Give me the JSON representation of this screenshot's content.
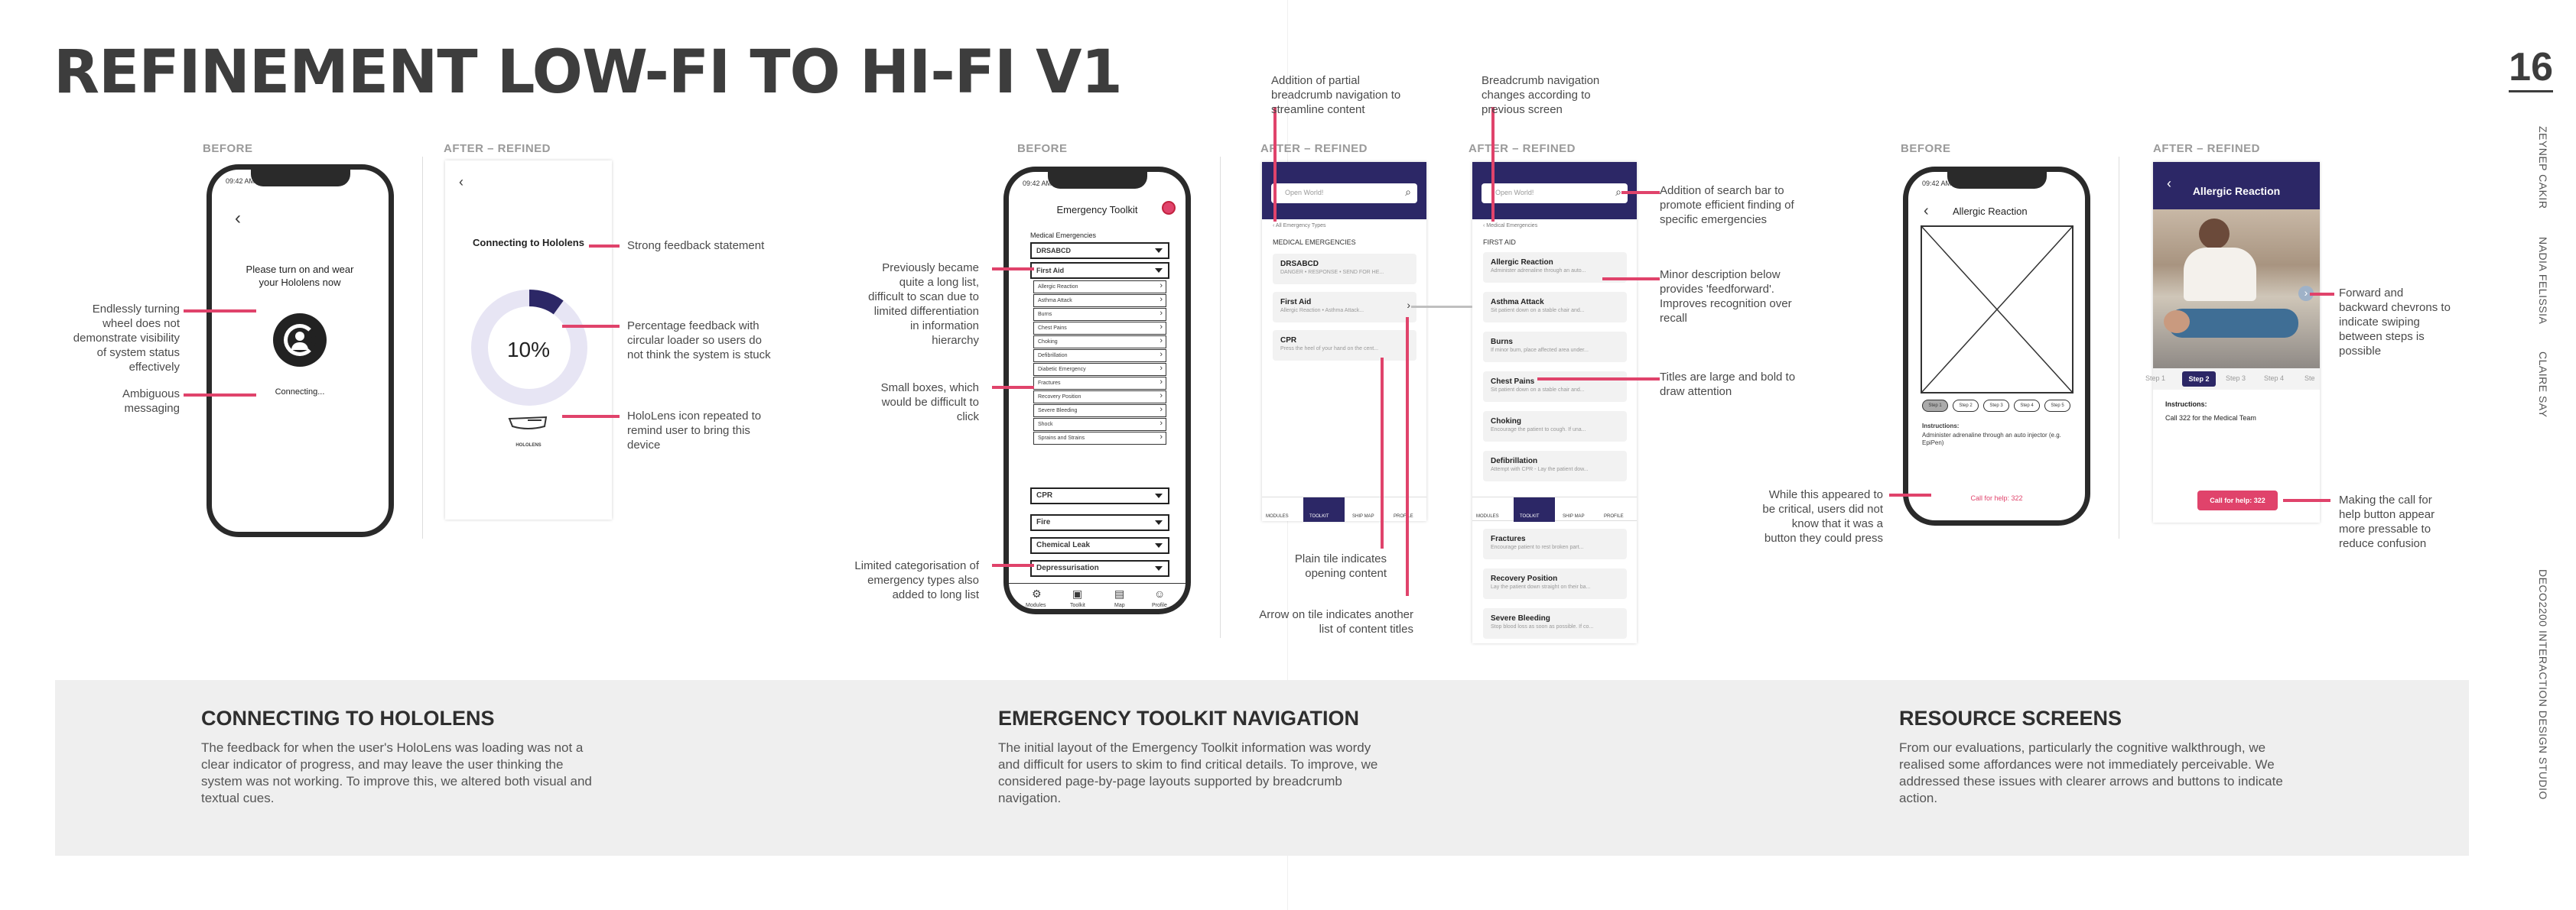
{
  "page": {
    "title": "REFINEMENT LOW-FI TO HI-FI V1",
    "number": "16",
    "colors": {
      "accent": "#e0436b",
      "navy": "#2c2766",
      "panel": "#efefef"
    }
  },
  "side": {
    "names": [
      "ZEYNEP CAKIR",
      "NADIA FELISSIA",
      "CLAIRE SAY"
    ],
    "course": "DECO2200 INTERACTION DESIGN STUDIO"
  },
  "labels": {
    "before": "BEFORE",
    "after": "AFTER – REFINED"
  },
  "hololens": {
    "before": {
      "time": "09:42 AM",
      "msg": "Please turn on and wear your Hololens now",
      "status": "Connecting..."
    },
    "after": {
      "heading": "Connecting to Hololens",
      "percent": "10%",
      "progress": 0.1,
      "brand": "HOLOLENS"
    },
    "notes": {
      "n1": "Endlessly turning wheel does not demonstrate visibility of system status effectively",
      "n2": "Ambiguous messaging",
      "n3": "Strong feedback statement",
      "n4": "Percentage feedback with circular loader so users do not think the system is stuck",
      "n5": "HoloLens icon repeated to remind user to bring this device"
    }
  },
  "toolkit": {
    "before": {
      "time": "09:42 AM",
      "title": "Emergency Toolkit",
      "section": "Medical Emergencies",
      "items": [
        "DRSABCD",
        "First Aid",
        "Allergic Reaction",
        "Asthma Attack",
        "Burns",
        "Chest Pains",
        "Choking",
        "Defibrillation",
        "Diabetic Emergency",
        "Fractures",
        "Recovery Position",
        "Severe Bleeding",
        "Shock",
        "Sprains and Strains",
        "CPR",
        "Fire",
        "Chemical Leak",
        "Depressurisation"
      ],
      "nav": [
        "Modules",
        "Toolkit",
        "Map",
        "Profile"
      ]
    },
    "after1": {
      "search": "Open World!",
      "crumb": "‹  All Emergency Types",
      "section": "MEDICAL EMERGENCIES",
      "tiles": [
        {
          "t": "DRSABCD",
          "s": "DANGER • RESPONSE • SEND FOR HE..."
        },
        {
          "t": "First Aid",
          "s": "Allergic Reaction • Asthma Attack..."
        },
        {
          "t": "CPR",
          "s": "Press the heel of your hand on the cent..."
        }
      ],
      "nav": [
        "MODULES",
        "TOOLKIT",
        "SHIP MAP",
        "PROFILE"
      ]
    },
    "after2": {
      "search": "Open World!",
      "crumb": "‹  Medical Emergencies",
      "section": "FIRST AID",
      "tiles": [
        {
          "t": "Allergic Reaction",
          "s": "Administer adrenaline through an auto..."
        },
        {
          "t": "Asthma Attack",
          "s": "Sit patient down on a stable chair and..."
        },
        {
          "t": "Burns",
          "s": "If minor burn, place affected area under..."
        },
        {
          "t": "Chest Pains",
          "s": "Sit patient down on a stable chair and..."
        },
        {
          "t": "Choking",
          "s": "Encourage the patient to cough. If una..."
        },
        {
          "t": "Defibrillation",
          "s": "Attempt with CPR - Lay the patient dow..."
        },
        {
          "t": "Fractures",
          "s": "Encourage patient to rest broken part..."
        },
        {
          "t": "Recovery Position",
          "s": "Lay the patient down straight on their ba..."
        },
        {
          "t": "Severe Bleeding",
          "s": "Stop blood loss as soon as possible. If co..."
        }
      ],
      "nav": [
        "MODULES",
        "TOOLKIT",
        "SHIP MAP",
        "PROFILE"
      ]
    },
    "notes": {
      "n1": "Addition of partial breadcrumb navigation to streamline content",
      "n2": "Breadcrumb navigation changes according to previous screen",
      "n3": "Previously became quite a long list, difficult to scan due to limited differentiation in information hierarchy",
      "n4": "Small boxes, which would be difficult to click",
      "n5": "Limited categorisation of emergency types also added to long list",
      "n6": "Plain tile indicates opening content",
      "n7": "Arrow on tile indicates another list of content titles",
      "n8": "Addition of search bar to promote efficient finding of specific emergencies",
      "n9": "Minor description below provides 'feedforward'. Improves recognition over recall",
      "n10": "Titles are large and bold to draw attention"
    }
  },
  "resource": {
    "before": {
      "time": "09:42 AM",
      "title": "Allergic Reaction",
      "steps": [
        "Step 1",
        "Step 2",
        "Step 3",
        "Step 4",
        "Step 5"
      ],
      "instr_h": "Instructions:",
      "instr": "Administer adrenaline through an auto injector (e.g. EpiPen)",
      "call": "Call for help: 322"
    },
    "after": {
      "title": "Allergic Reaction",
      "steps": [
        "Step 1",
        "Step 2",
        "Step 3",
        "Step 4",
        "Ste"
      ],
      "active": "Step 2",
      "instr_h": "Instructions:",
      "instr": "Call 322 for the Medical Team",
      "call": "Call for help: 322"
    },
    "notes": {
      "n1": "While this appeared to be critical, users did not know that it was a button they could press",
      "n2": "Forward and backward chevrons to indicate swiping between steps is possible",
      "n3": "Making the call for help button appear more pressable to reduce confusion"
    }
  },
  "bottom": [
    {
      "h": "CONNECTING TO HOLOLENS",
      "t": "The feedback for when the user's HoloLens was loading  was not a clear indicator of progress, and may leave the user thinking the system was not working. To improve this, we altered both visual and textual cues."
    },
    {
      "h": "EMERGENCY TOOLKIT NAVIGATION",
      "t": "The initial layout of the Emergency Toolkit information was wordy and difficult for users to skim to find critical details. To improve, we considered page-by-page layouts supported by breadcrumb navigation."
    },
    {
      "h": "RESOURCE SCREENS",
      "t": "From our evaluations, particularly the cognitive walkthrough, we realised some affordances were not immediately perceivable. We addressed these issues with clearer arrows and buttons to indicate action."
    }
  ]
}
